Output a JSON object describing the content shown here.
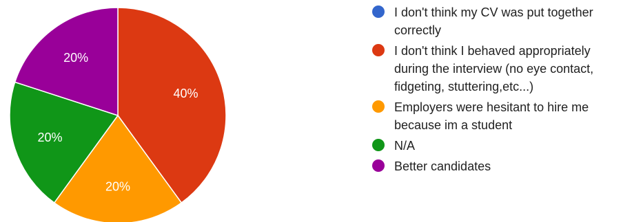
{
  "chart_data": {
    "type": "pie",
    "categories": [
      "I don't think my CV was put together\ncorrectly",
      "I don't think I behaved appropriately\nduring the interview (no eye contact,\nfidgeting, stuttering,etc...)",
      "Employers were hesitant to hire me\nbecause im a student",
      "N/A",
      "Better candidates"
    ],
    "values": [
      0,
      40,
      20,
      20,
      20
    ],
    "value_labels": [
      "",
      "40%",
      "20%",
      "20%",
      "20%"
    ],
    "colors": [
      "#3366cc",
      "#dc3912",
      "#ff9900",
      "#109618",
      "#990099"
    ],
    "start_angle_deg": 90,
    "direction": "clockwise",
    "legend_position": "right"
  }
}
